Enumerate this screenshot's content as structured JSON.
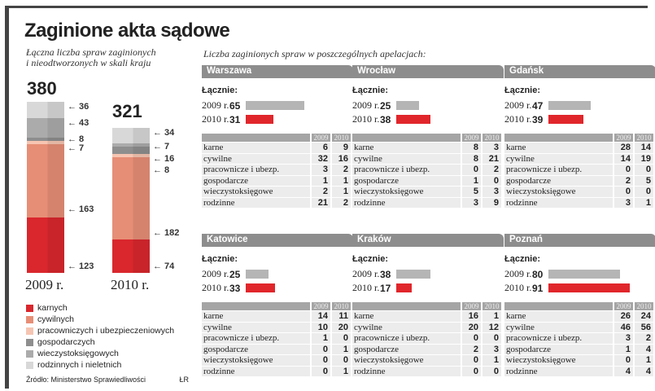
{
  "title": "Zaginione akta sądowe",
  "left_subtitle": [
    "Łączna liczba spraw zaginionych",
    "i nieodtworzonych w skali kraju"
  ],
  "right_subtitle": "Liczba zaginionych spraw  w poszczególnych apelacjach:",
  "chart_data": {
    "type": "bar",
    "stacked": true,
    "categories": [
      "2009 r.",
      "2010 r."
    ],
    "totals": [
      380,
      321
    ],
    "series": [
      {
        "name": "karnych",
        "color": "#d9272d",
        "values": [
          123,
          74
        ]
      },
      {
        "name": "cywilnych",
        "color": "#e78e76",
        "values": [
          163,
          182
        ]
      },
      {
        "name": "pracowniczych i ubezpieczeniowych",
        "color": "#f6c5b2",
        "values": [
          7,
          8
        ]
      },
      {
        "name": "gospodarczych",
        "color": "#8e8e8e",
        "values": [
          8,
          16
        ]
      },
      {
        "name": "wieczystoksięgowych",
        "color": "#ababab",
        "values": [
          43,
          7
        ]
      },
      {
        "name": "rodzinnych i nieletnich",
        "color": "#d8d8d8",
        "values": [
          36,
          34
        ]
      }
    ]
  },
  "source": "Źródło: Ministerstwo Sprawiedliwości",
  "author": "ŁR",
  "total_label": "Łącznie:",
  "year_labels": [
    "2009 r.",
    "2010 r."
  ],
  "col_headers": [
    "2009",
    "2010"
  ],
  "row_labels": [
    "karne",
    "cywilne",
    "pracownicze i ubezp.",
    "gospodarcze",
    "wieczystoksięgowe",
    "rodzinne"
  ],
  "panels": [
    {
      "name": "Warszawa",
      "totals": [
        65,
        31
      ],
      "rows": [
        [
          6,
          9
        ],
        [
          32,
          16
        ],
        [
          3,
          2
        ],
        [
          1,
          1
        ],
        [
          2,
          1
        ],
        [
          21,
          2
        ]
      ]
    },
    {
      "name": "Wrocław",
      "totals": [
        25,
        38
      ],
      "rows": [
        [
          8,
          3
        ],
        [
          8,
          21
        ],
        [
          0,
          2
        ],
        [
          1,
          0
        ],
        [
          5,
          3
        ],
        [
          3,
          9
        ]
      ]
    },
    {
      "name": "Gdańsk",
      "totals": [
        47,
        39
      ],
      "rows": [
        [
          28,
          14
        ],
        [
          14,
          19
        ],
        [
          0,
          0
        ],
        [
          2,
          5
        ],
        [
          0,
          0
        ],
        [
          3,
          1
        ]
      ]
    },
    {
      "name": "Katowice",
      "totals": [
        25,
        33
      ],
      "rows": [
        [
          14,
          11
        ],
        [
          10,
          20
        ],
        [
          1,
          0
        ],
        [
          0,
          1
        ],
        [
          0,
          0
        ],
        [
          0,
          1
        ]
      ]
    },
    {
      "name": "Kraków",
      "totals": [
        38,
        17
      ],
      "rows": [
        [
          16,
          1
        ],
        [
          20,
          12
        ],
        [
          0,
          0
        ],
        [
          2,
          3
        ],
        [
          0,
          1
        ],
        [
          0,
          0
        ]
      ]
    },
    {
      "name": "Poznań",
      "totals": [
        80,
        91
      ],
      "rows": [
        [
          26,
          24
        ],
        [
          46,
          56
        ],
        [
          3,
          2
        ],
        [
          1,
          4
        ],
        [
          0,
          1
        ],
        [
          4,
          4
        ]
      ]
    }
  ],
  "colors": {
    "bar2009": "#b5b5b5",
    "bar2010": "#e0262b"
  }
}
